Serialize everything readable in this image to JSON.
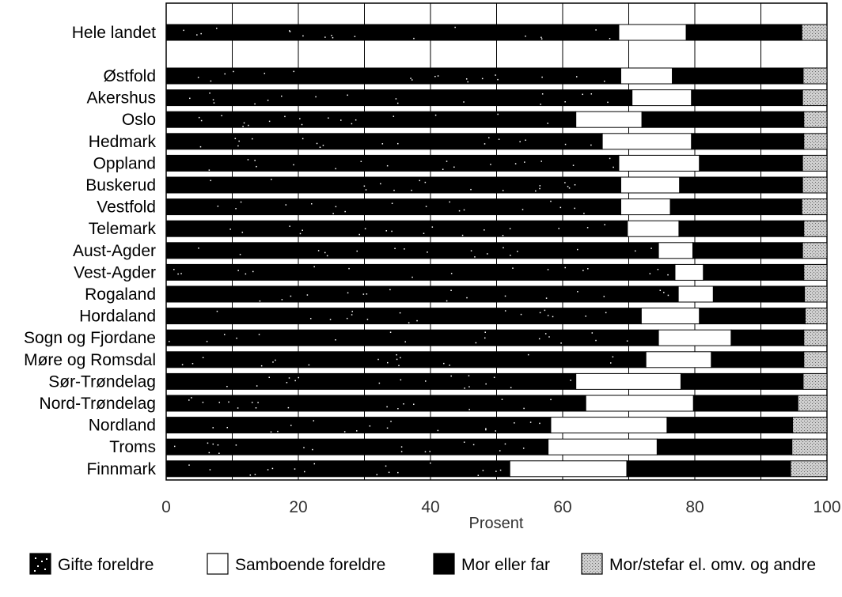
{
  "chart_data": {
    "type": "bar",
    "orientation": "horizontal",
    "stacked": true,
    "xlabel": "Prosent",
    "xlim": [
      0,
      100
    ],
    "x_ticks": [
      "0",
      "20",
      "40",
      "60",
      "80",
      "100"
    ],
    "grid": true,
    "legend_position": "bottom",
    "categories": [
      "Hele landet",
      "Østfold",
      "Akershus",
      "Oslo",
      "Hedmark",
      "Oppland",
      "Buskerud",
      "Vestfold",
      "Telemark",
      "Aust-Agder",
      "Vest-Agder",
      "Rogaland",
      "Hordaland",
      "Sogn og Fjordane",
      "Møre og Romsdal",
      "Sør-Trøndelag",
      "Nord-Trøndelag",
      "Nordland",
      "Troms",
      "Finnmark"
    ],
    "series": [
      {
        "name": "Gifte foreldre",
        "color": "#000000",
        "values": [
          68.5,
          68.8,
          70.5,
          62,
          66,
          68.5,
          68.8,
          68.8,
          69.8,
          74.5,
          77,
          77.5,
          71.9,
          74.5,
          72.6,
          62,
          63.5,
          58.2,
          57.8,
          52
        ]
      },
      {
        "name": "Samboende foreldre",
        "color": "#ffffff",
        "values": [
          10.2,
          7.8,
          9,
          10,
          13.5,
          12.2,
          8.9,
          7.5,
          7.8,
          5.2,
          4.3,
          5.3,
          8.8,
          11,
          9.9,
          15.9,
          16.3,
          17.6,
          16.5,
          17.7
        ]
      },
      {
        "name": "Mor eller far",
        "color": "#000000",
        "values": [
          17.5,
          19.8,
          16.8,
          24.5,
          17,
          15.6,
          18.6,
          19.9,
          18.9,
          16.6,
          15.2,
          13.8,
          16,
          11,
          14,
          18.5,
          15.8,
          19,
          20.4,
          24.8
        ]
      },
      {
        "name": "Mor/stefar el. omv. og andre",
        "color": "#c8c8c8",
        "values": [
          3.8,
          3.6,
          3.7,
          3.5,
          3.5,
          3.7,
          3.7,
          3.8,
          3.5,
          3.7,
          3.5,
          3.4,
          3.3,
          3.5,
          3.5,
          3.6,
          4.4,
          5.2,
          5.3,
          5.5
        ]
      }
    ]
  }
}
